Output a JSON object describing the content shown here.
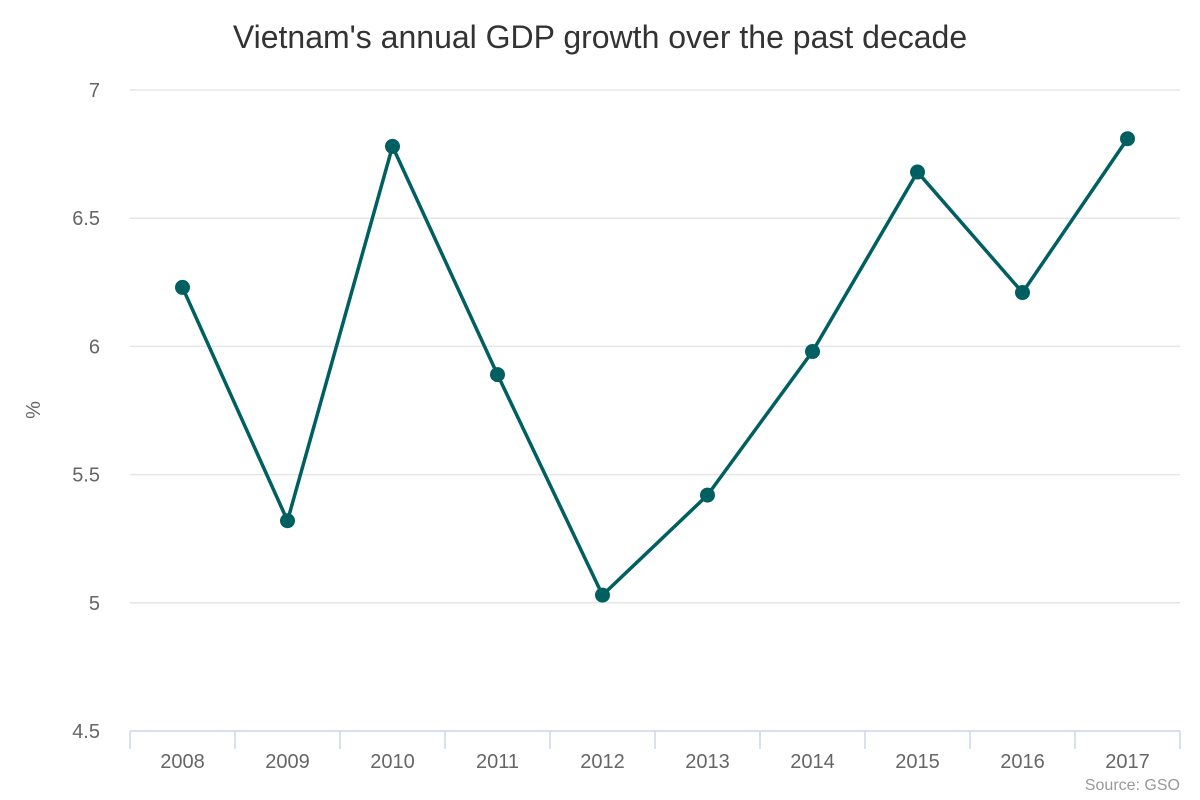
{
  "chart_data": {
    "type": "line",
    "title": "Vietnam's annual GDP growth over the past decade",
    "xlabel": "",
    "ylabel": "%",
    "categories": [
      "2008",
      "2009",
      "2010",
      "2011",
      "2012",
      "2013",
      "2014",
      "2015",
      "2016",
      "2017"
    ],
    "series": [
      {
        "values": [
          6.23,
          5.32,
          6.78,
          5.89,
          5.03,
          5.42,
          5.98,
          6.68,
          6.21,
          6.81
        ]
      }
    ],
    "ylim": [
      4.5,
      7
    ],
    "yticks": [
      "4.5",
      "5",
      "5.5",
      "6",
      "6.5",
      "7"
    ],
    "grid": true,
    "legend": "none",
    "credit": "Source: GSO",
    "colors": {
      "series": "#005f61",
      "grid": "#e6e6e6",
      "axis": "#ccd6eb"
    }
  }
}
